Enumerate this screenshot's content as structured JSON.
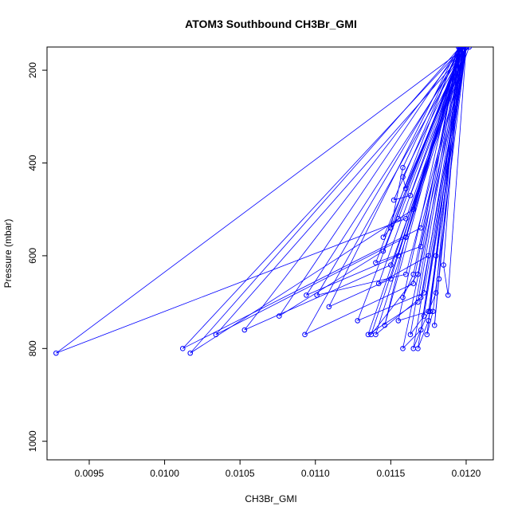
{
  "chart_data": {
    "type": "line",
    "title": "ATOM3 Southbound CH3Br_GMI",
    "xlabel": "CH3Br_GMI",
    "ylabel": "Pressure (mbar)",
    "xlim": [
      0.00922,
      0.01218
    ],
    "ylim": [
      1040,
      150
    ],
    "y_reversed": true,
    "x_ticks": [
      0.0095,
      0.01,
      0.0105,
      0.011,
      0.0115,
      0.012
    ],
    "x_tick_labels": [
      "0.0095",
      "0.0100",
      "0.0105",
      "0.0110",
      "0.0115",
      "0.0120"
    ],
    "y_ticks": [
      200,
      400,
      600,
      800,
      1000
    ],
    "y_tick_labels": [
      "200",
      "400",
      "600",
      "800",
      "1000"
    ],
    "grid": false,
    "colors": {
      "series": "#0000ff",
      "axis": "#000000"
    },
    "series": [
      {
        "marker": "open-circle",
        "x": [
          0.012,
          0.0116,
          0.00928,
          0.012,
          0.0117,
          0.01012,
          0.01198,
          0.01165,
          0.01017,
          0.01196,
          0.0116,
          0.01034,
          0.01202,
          0.0115,
          0.01053,
          0.01198,
          0.01145,
          0.01076,
          0.01196,
          0.01155,
          0.01094,
          0.012,
          0.0116,
          0.01101,
          0.01198,
          0.0115,
          0.01109,
          0.01195,
          0.01165,
          0.01093,
          0.012,
          0.0117,
          0.0114,
          0.012,
          0.01172,
          0.01128,
          0.01197,
          0.01168,
          0.01135,
          0.012,
          0.01175,
          0.01155,
          0.01195,
          0.0118,
          0.01165,
          0.01198,
          0.0117,
          0.01158,
          0.012,
          0.01172,
          0.01163,
          0.01196,
          0.01175,
          0.01168,
          0.012,
          0.01178,
          0.01174,
          0.01198,
          0.01182,
          0.01179,
          0.01196,
          0.01185,
          0.01188,
          0.012,
          0.0118,
          0.01176,
          0.01198,
          0.0116,
          0.01158,
          0.012,
          0.01163,
          0.01152,
          0.01196,
          0.01158,
          0.0115,
          0.01198,
          0.01155,
          0.01145,
          0.012,
          0.0117,
          0.0114,
          0.01195,
          0.01168,
          0.01137,
          0.012,
          0.01175,
          0.01142,
          0.01198,
          0.0116,
          0.01146,
          0.01196,
          0.01165,
          0.01158
        ],
        "y": [
          150,
          520,
          810,
          150,
          540,
          800,
          150,
          500,
          810,
          150,
          560,
          770,
          150,
          620,
          760,
          150,
          590,
          730,
          150,
          600,
          685,
          150,
          640,
          685,
          150,
          650,
          710,
          150,
          660,
          770,
          150,
          690,
          770,
          150,
          680,
          740,
          150,
          700,
          770,
          150,
          720,
          740,
          150,
          680,
          800,
          150,
          760,
          800,
          150,
          730,
          770,
          150,
          740,
          800,
          150,
          720,
          770,
          150,
          650,
          750,
          150,
          620,
          685,
          150,
          600,
          720,
          150,
          455,
          430,
          150,
          470,
          480,
          150,
          410,
          540,
          150,
          520,
          560,
          150,
          580,
          615,
          150,
          640,
          770,
          150,
          600,
          660,
          150,
          560,
          750,
          150,
          640,
          690
        ]
      }
    ]
  }
}
